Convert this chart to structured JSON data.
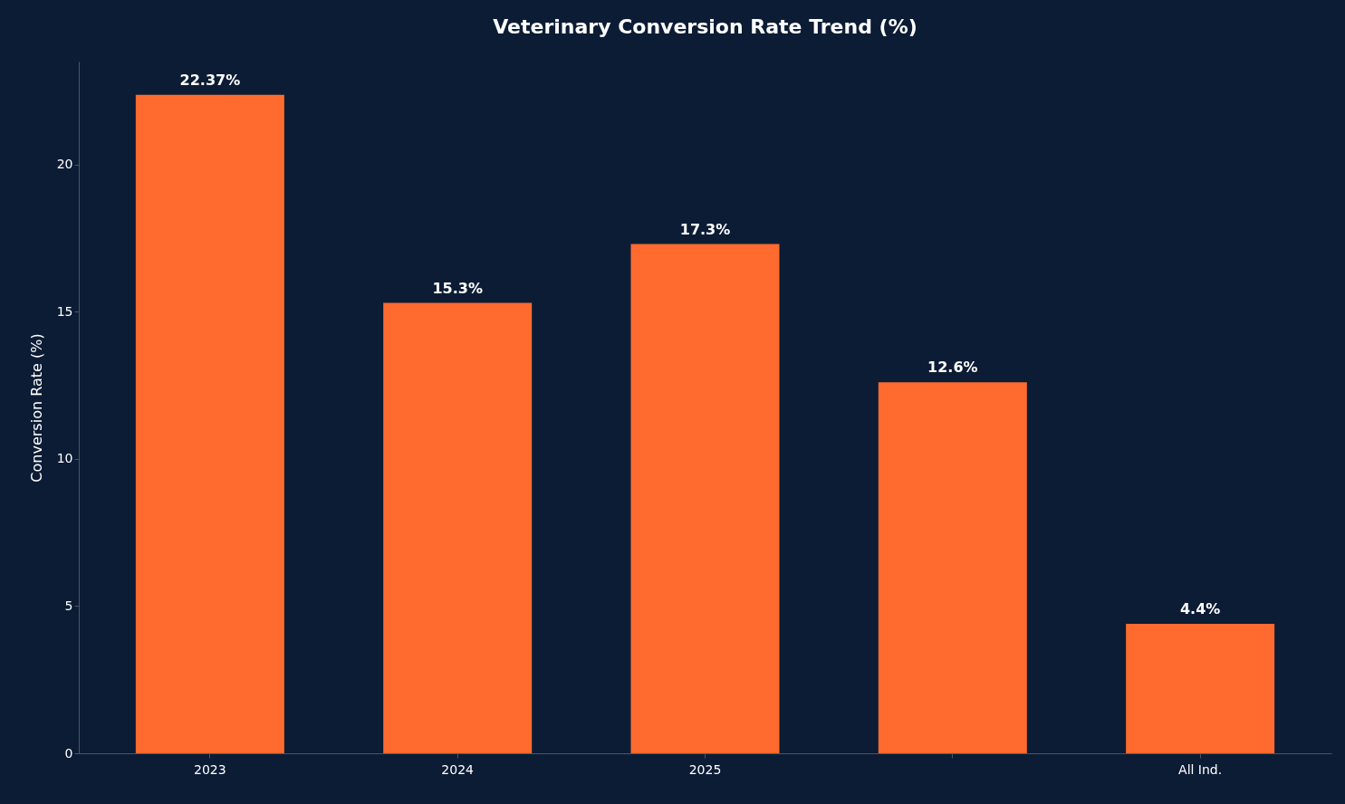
{
  "chart_data": {
    "type": "bar",
    "title": "Veterinary Conversion Rate Trend (%)",
    "ylabel": "Conversion Rate (%)",
    "categories": [
      "2023",
      "2024",
      "2025",
      null,
      "All Ind."
    ],
    "values": [
      22.37,
      15.3,
      17.3,
      12.6,
      4.4
    ],
    "value_labels": [
      "22.37%",
      "15.3%",
      "17.3%",
      "12.6%",
      "4.4%"
    ],
    "color": "#ff6b2e",
    "ylim": [
      0,
      23.5
    ],
    "yticks": [
      0,
      5,
      10,
      15,
      20
    ],
    "grid": false
  }
}
